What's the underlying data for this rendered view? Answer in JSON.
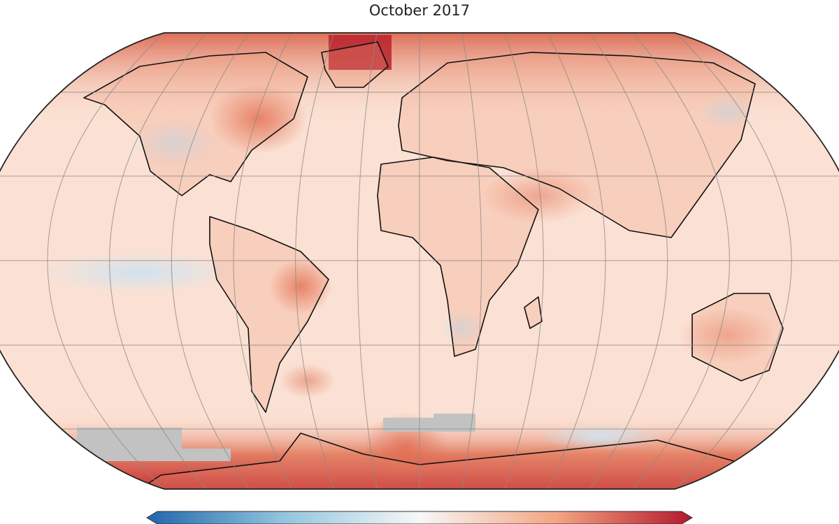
{
  "map": {
    "subtitle": "October 2017"
  }
}
